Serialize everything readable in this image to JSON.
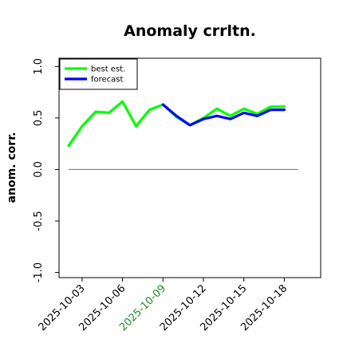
{
  "chart_data": {
    "type": "line",
    "title": "Anomaly crrltn.",
    "xlabel": "",
    "ylabel": "anom. corr.",
    "x": [
      "2025-10-02",
      "2025-10-03",
      "2025-10-04",
      "2025-10-05",
      "2025-10-06",
      "2025-10-07",
      "2025-10-08",
      "2025-10-09",
      "2025-10-10",
      "2025-10-11",
      "2025-10-12",
      "2025-10-13",
      "2025-10-14",
      "2025-10-15",
      "2025-10-16",
      "2025-10-17",
      "2025-10-18"
    ],
    "xticks": [
      "2025-10-03",
      "2025-10-06",
      "2025-10-09",
      "2025-10-12",
      "2025-10-15",
      "2025-10-18"
    ],
    "xtick_highlight": "2025-10-09",
    "xtick_highlight_color": "#228b22",
    "yticks": [
      "-1.0",
      "-0.5",
      "0.0",
      "0.5",
      "1.0"
    ],
    "ylim": [
      -1.05,
      1.08
    ],
    "series": [
      {
        "name": "best est.",
        "color": "#00ff00",
        "values": [
          0.23,
          0.42,
          0.56,
          0.55,
          0.66,
          0.42,
          0.58,
          0.63,
          0.51,
          0.43,
          0.5,
          0.59,
          0.52,
          0.59,
          0.54,
          0.61,
          0.61
        ]
      },
      {
        "name": "forecast",
        "color": "#0000ff",
        "values": [
          null,
          null,
          null,
          null,
          null,
          null,
          null,
          0.63,
          0.52,
          0.43,
          0.49,
          0.52,
          0.49,
          0.55,
          0.52,
          0.58,
          0.58
        ]
      }
    ],
    "hline": 0,
    "hline_color": "#808080",
    "legend_position": "upper-left",
    "grid": false
  }
}
